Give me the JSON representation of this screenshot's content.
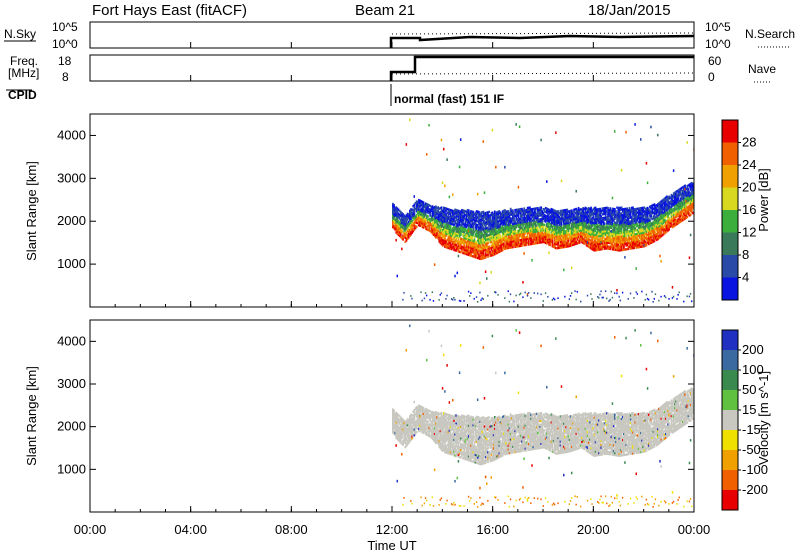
{
  "header": {
    "station": "Fort Hays East (fitACF)",
    "beam": "Beam 21",
    "date": "18/Jan/2015"
  },
  "top_panels": {
    "nsky": {
      "label": "N.Sky",
      "tick_top": "10^5",
      "tick_bottom": "10^0",
      "right_label": "N.Search",
      "right_tick_top": "10^5",
      "right_tick_bottom": "10^0"
    },
    "freq": {
      "label_line1": "Freq.",
      "label_line2": "[MHz]",
      "tick_top": "18",
      "tick_bottom": "8",
      "right_label": "Nave",
      "right_tick_top": "60",
      "right_tick_bottom": "0"
    },
    "cpid": {
      "label": "CPID",
      "mode_text": "normal (fast) 151 IF"
    }
  },
  "chart_data": [
    {
      "type": "heatmap",
      "name": "power",
      "ylabel": "Slant Range [km]",
      "ylim": [
        0,
        4500
      ],
      "yticks": [
        "1000",
        "2000",
        "3000",
        "4000"
      ],
      "xlim": [
        "00:00",
        "24:00"
      ],
      "data_start": "12:00",
      "colorbar_label": "Power [dB]",
      "colorbar_ticks": [
        "4",
        "8",
        "12",
        "16",
        "20",
        "24",
        "28"
      ],
      "colorbar_colors": [
        "#0a14e0",
        "#2a4aa8",
        "#3a7a5a",
        "#3cae3c",
        "#d8d820",
        "#f0a000",
        "#f06000",
        "#e80000"
      ],
      "echo_band": [
        {
          "t": "12:00",
          "lo": 1800,
          "hi": 2400
        },
        {
          "t": "12:30",
          "lo": 1500,
          "hi": 2100
        },
        {
          "t": "13:00",
          "lo": 1900,
          "hi": 2500
        },
        {
          "t": "13:30",
          "lo": 1750,
          "hi": 2350
        },
        {
          "t": "14:00",
          "lo": 1400,
          "hi": 2300
        },
        {
          "t": "14:30",
          "lo": 1300,
          "hi": 2250
        },
        {
          "t": "15:00",
          "lo": 1200,
          "hi": 2250
        },
        {
          "t": "15:30",
          "lo": 1100,
          "hi": 2200
        },
        {
          "t": "16:00",
          "lo": 1200,
          "hi": 2200
        },
        {
          "t": "16:30",
          "lo": 1350,
          "hi": 2250
        },
        {
          "t": "17:00",
          "lo": 1400,
          "hi": 2300
        },
        {
          "t": "17:30",
          "lo": 1450,
          "hi": 2300
        },
        {
          "t": "18:00",
          "lo": 1500,
          "hi": 2300
        },
        {
          "t": "18:30",
          "lo": 1350,
          "hi": 2250
        },
        {
          "t": "19:00",
          "lo": 1400,
          "hi": 2250
        },
        {
          "t": "19:30",
          "lo": 1500,
          "hi": 2300
        },
        {
          "t": "20:00",
          "lo": 1300,
          "hi": 2300
        },
        {
          "t": "20:30",
          "lo": 1350,
          "hi": 2300
        },
        {
          "t": "21:00",
          "lo": 1300,
          "hi": 2300
        },
        {
          "t": "21:30",
          "lo": 1350,
          "hi": 2300
        },
        {
          "t": "22:00",
          "lo": 1400,
          "hi": 2300
        },
        {
          "t": "22:30",
          "lo": 1550,
          "hi": 2400
        },
        {
          "t": "23:00",
          "lo": 1800,
          "hi": 2600
        },
        {
          "t": "23:30",
          "lo": 2000,
          "hi": 2800
        },
        {
          "t": "24:00",
          "lo": 2200,
          "hi": 2900
        }
      ]
    },
    {
      "type": "heatmap",
      "name": "velocity",
      "ylabel": "Slant Range [km]",
      "ylim": [
        0,
        4500
      ],
      "yticks": [
        "1000",
        "2000",
        "3000",
        "4000"
      ],
      "xlim": [
        "00:00",
        "24:00"
      ],
      "xlabel": "Time UT",
      "xticks": [
        "00:00",
        "04:00",
        "08:00",
        "12:00",
        "16:00",
        "20:00",
        "00:00"
      ],
      "colorbar_label": "Velocity [m s^-1]",
      "colorbar_ticks": [
        "200",
        "100",
        "50",
        "15",
        "-15",
        "-50",
        "-100",
        "-200"
      ],
      "colorbar_colors": [
        "#2030c0",
        "#3a6aa0",
        "#3a8a50",
        "#60c040",
        "#c8c8c0",
        "#f0e000",
        "#f0a000",
        "#f06000",
        "#e80000"
      ]
    }
  ]
}
